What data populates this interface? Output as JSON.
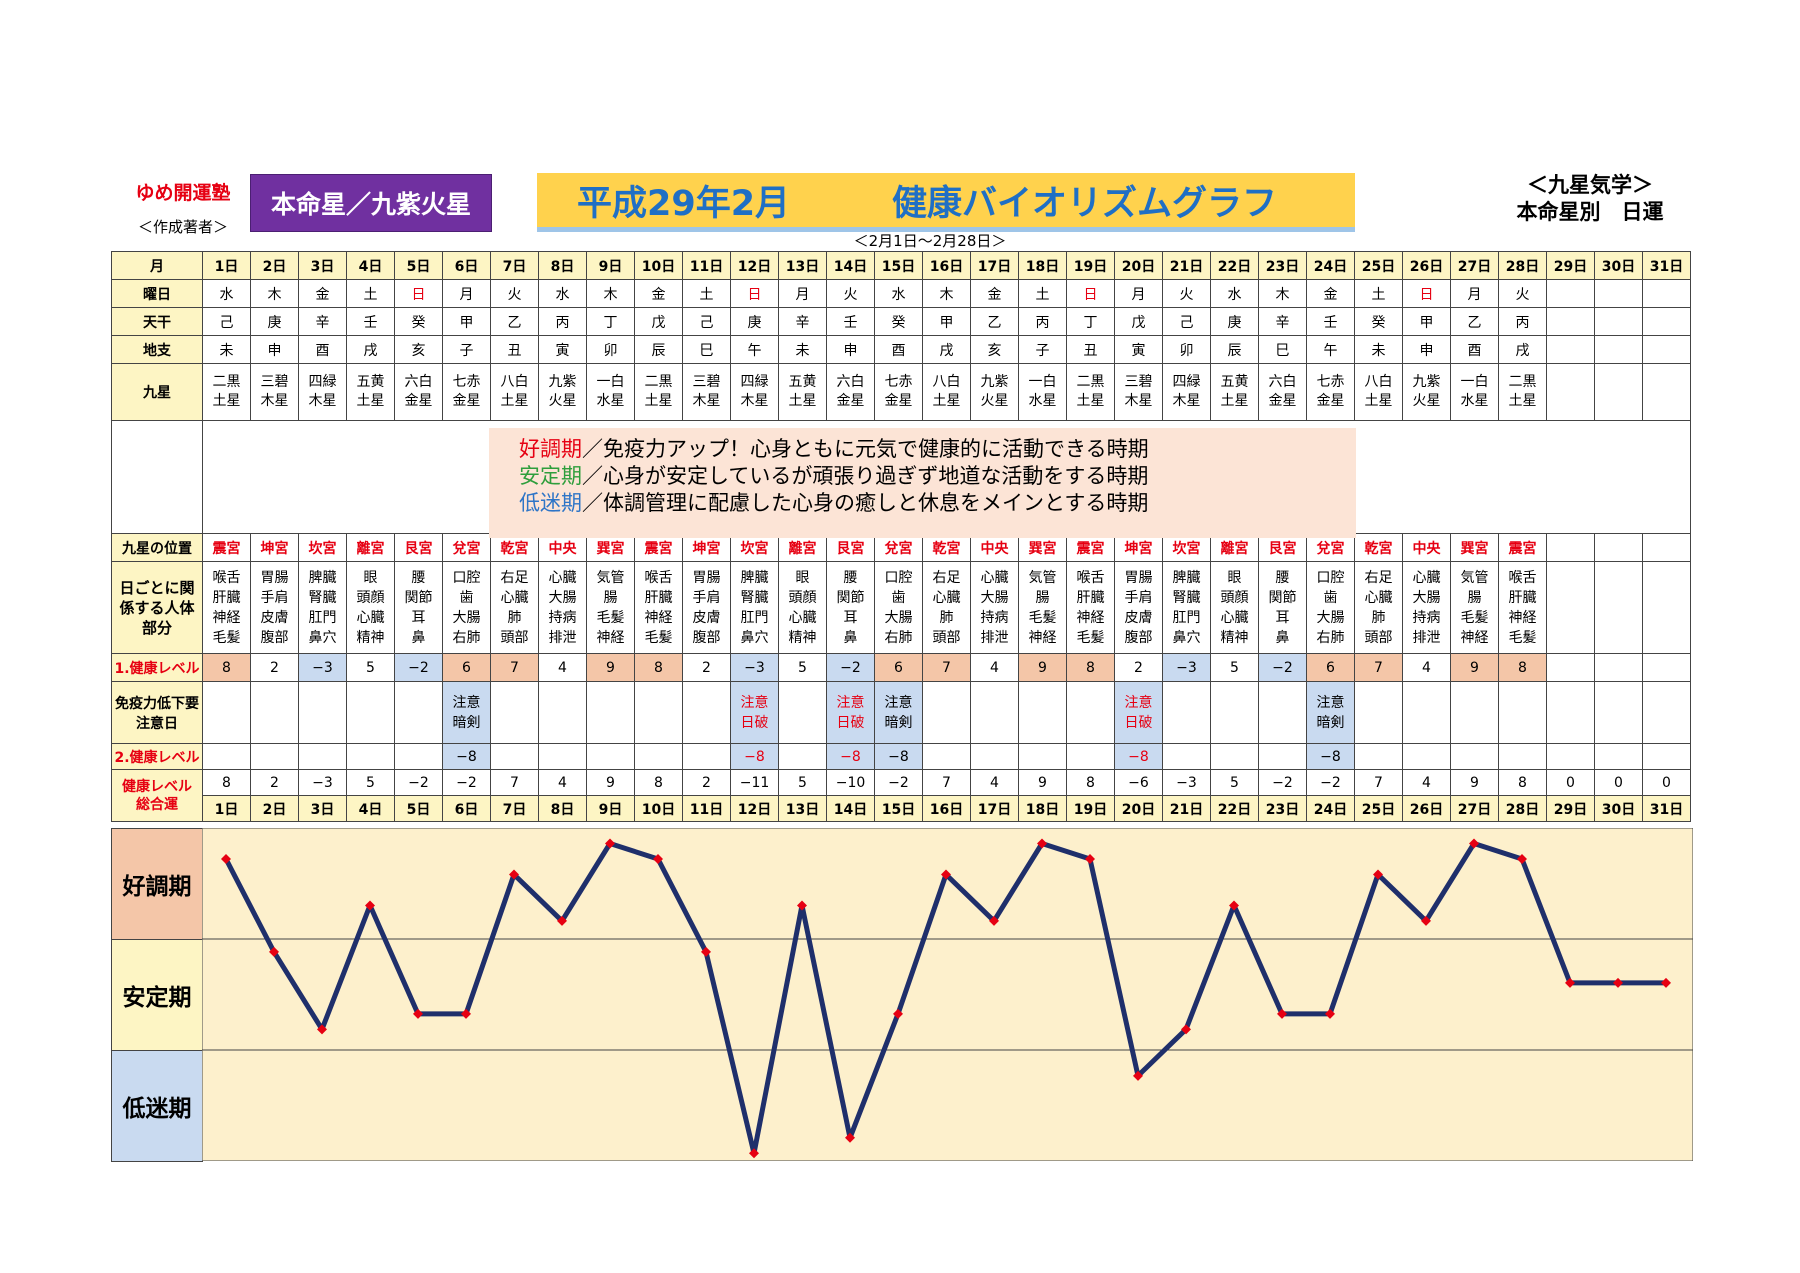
{
  "header": {
    "author": "ゆめ開運塾",
    "author_sub": "＜作成著者＞",
    "honmei": "本命星／九紫火星",
    "title_month": "平成29年2月",
    "title_main": "健康バイオリズムグラフ",
    "range": "＜2月1日～2月28日＞",
    "nine_star_title": "＜九星気学＞",
    "nine_star_sub": "本命星別　日運"
  },
  "row_labels": {
    "month": "月",
    "weekday": "曜日",
    "tenkan": "天干",
    "chishi": "地支",
    "kyusei": "九星",
    "palace": "九星の位置",
    "body": "日ごとに関係する人体部分",
    "level1": "1.健康レベル",
    "immune": "免疫力低下要注意日",
    "level2": "2.健康レベル",
    "total": "健康レベル総合運"
  },
  "days": [
    "1日",
    "2日",
    "3日",
    "4日",
    "5日",
    "6日",
    "7日",
    "8日",
    "9日",
    "10日",
    "11日",
    "12日",
    "13日",
    "14日",
    "15日",
    "16日",
    "17日",
    "18日",
    "19日",
    "20日",
    "21日",
    "22日",
    "23日",
    "24日",
    "25日",
    "26日",
    "27日",
    "28日",
    "29日",
    "30日",
    "31日"
  ],
  "weekdays": [
    "水",
    "木",
    "金",
    "土",
    "日",
    "月",
    "火",
    "水",
    "木",
    "金",
    "土",
    "日",
    "月",
    "火",
    "水",
    "木",
    "金",
    "土",
    "日",
    "月",
    "火",
    "水",
    "木",
    "金",
    "土",
    "日",
    "月",
    "火"
  ],
  "sunday_indices": [
    4,
    11,
    18,
    25
  ],
  "tenkan": [
    "己",
    "庚",
    "辛",
    "壬",
    "癸",
    "甲",
    "乙",
    "丙",
    "丁",
    "戊",
    "己",
    "庚",
    "辛",
    "壬",
    "癸",
    "甲",
    "乙",
    "丙",
    "丁",
    "戊",
    "己",
    "庚",
    "辛",
    "壬",
    "癸",
    "甲",
    "乙",
    "丙"
  ],
  "chishi": [
    "未",
    "申",
    "酉",
    "戌",
    "亥",
    "子",
    "丑",
    "寅",
    "卯",
    "辰",
    "巳",
    "午",
    "未",
    "申",
    "酉",
    "戌",
    "亥",
    "子",
    "丑",
    "寅",
    "卯",
    "辰",
    "巳",
    "午",
    "未",
    "申",
    "酉",
    "戌"
  ],
  "kyusei": [
    [
      "二黒",
      "土星"
    ],
    [
      "三碧",
      "木星"
    ],
    [
      "四緑",
      "木星"
    ],
    [
      "五黄",
      "土星"
    ],
    [
      "六白",
      "金星"
    ],
    [
      "七赤",
      "金星"
    ],
    [
      "八白",
      "土星"
    ],
    [
      "九紫",
      "火星"
    ],
    [
      "一白",
      "水星"
    ],
    [
      "二黒",
      "土星"
    ],
    [
      "三碧",
      "木星"
    ],
    [
      "四緑",
      "木星"
    ],
    [
      "五黄",
      "土星"
    ],
    [
      "六白",
      "金星"
    ],
    [
      "七赤",
      "金星"
    ],
    [
      "八白",
      "土星"
    ],
    [
      "九紫",
      "火星"
    ],
    [
      "一白",
      "水星"
    ],
    [
      "二黒",
      "土星"
    ],
    [
      "三碧",
      "木星"
    ],
    [
      "四緑",
      "木星"
    ],
    [
      "五黄",
      "土星"
    ],
    [
      "六白",
      "金星"
    ],
    [
      "七赤",
      "金星"
    ],
    [
      "八白",
      "土星"
    ],
    [
      "九紫",
      "火星"
    ],
    [
      "一白",
      "水星"
    ],
    [
      "二黒",
      "土星"
    ]
  ],
  "legend": [
    {
      "term": "好調期",
      "desc": "／免疫力アップ！心身ともに元気で健康的に活動できる時期"
    },
    {
      "term": "安定期",
      "desc": "／心身が安定しているが頑張り過ぎず地道な活動をする時期"
    },
    {
      "term": "低迷期",
      "desc": "／体調管理に配慮した心身の癒しと休息をメインとする時期"
    }
  ],
  "palaces": [
    "震宮",
    "坤宮",
    "坎宮",
    "離宮",
    "艮宮",
    "兌宮",
    "乾宮",
    "中央",
    "巽宮",
    "震宮",
    "坤宮",
    "坎宮",
    "離宮",
    "艮宮",
    "兌宮",
    "乾宮",
    "中央",
    "巽宮",
    "震宮",
    "坤宮",
    "坎宮",
    "離宮",
    "艮宮",
    "兌宮",
    "乾宮",
    "中央",
    "巽宮",
    "震宮"
  ],
  "body_parts": [
    [
      "喉舌",
      "肝臓",
      "神経",
      "毛髪"
    ],
    [
      "胃腸",
      "手肩",
      "皮膚",
      "腹部"
    ],
    [
      "脾臓",
      "腎臓",
      "肛門",
      "鼻穴"
    ],
    [
      "眼",
      "頭顔",
      "心臓",
      "精神"
    ],
    [
      "腰",
      "関節",
      "耳",
      "鼻"
    ],
    [
      "口腔",
      "歯",
      "大腸",
      "右肺"
    ],
    [
      "右足",
      "心臓",
      "肺",
      "頭部"
    ],
    [
      "心臓",
      "大腸",
      "持病",
      "排泄"
    ],
    [
      "気管",
      "腸",
      "毛髪",
      "神経"
    ],
    [
      "喉舌",
      "肝臓",
      "神経",
      "毛髪"
    ],
    [
      "胃腸",
      "手肩",
      "皮膚",
      "腹部"
    ],
    [
      "脾臓",
      "腎臓",
      "肛門",
      "鼻穴"
    ],
    [
      "眼",
      "頭顔",
      "心臓",
      "精神"
    ],
    [
      "腰",
      "関節",
      "耳",
      "鼻"
    ],
    [
      "口腔",
      "歯",
      "大腸",
      "右肺"
    ],
    [
      "右足",
      "心臓",
      "肺",
      "頭部"
    ],
    [
      "心臓",
      "大腸",
      "持病",
      "排泄"
    ],
    [
      "気管",
      "腸",
      "毛髪",
      "神経"
    ],
    [
      "喉舌",
      "肝臓",
      "神経",
      "毛髪"
    ],
    [
      "胃腸",
      "手肩",
      "皮膚",
      "腹部"
    ],
    [
      "脾臓",
      "腎臓",
      "肛門",
      "鼻穴"
    ],
    [
      "眼",
      "頭顔",
      "心臓",
      "精神"
    ],
    [
      "腰",
      "関節",
      "耳",
      "鼻"
    ],
    [
      "口腔",
      "歯",
      "大腸",
      "右肺"
    ],
    [
      "右足",
      "心臓",
      "肺",
      "頭部"
    ],
    [
      "心臓",
      "大腸",
      "持病",
      "排泄"
    ],
    [
      "気管",
      "腸",
      "毛髪",
      "神経"
    ],
    [
      "喉舌",
      "肝臓",
      "神経",
      "毛髪"
    ]
  ],
  "level1": [
    "8",
    "2",
    "−3",
    "5",
    "−2",
    "6",
    "7",
    "4",
    "9",
    "8",
    "2",
    "−3",
    "5",
    "−2",
    "6",
    "7",
    "4",
    "9",
    "8",
    "2",
    "−3",
    "5",
    "−2",
    "6",
    "7",
    "4",
    "9",
    "8"
  ],
  "immune_notes": {
    "5": [
      "注意",
      "暗剣"
    ],
    "11": [
      "注意",
      "日破"
    ],
    "13": [
      "注意",
      "日破"
    ],
    "14": [
      "注意",
      "暗剣"
    ],
    "19": [
      "注意",
      "日破"
    ],
    "23": [
      "注意",
      "暗剣"
    ]
  },
  "immune_red": [
    11,
    13,
    19
  ],
  "level2": {
    "5": "−8",
    "11": "−8",
    "13": "−8",
    "14": "−8",
    "19": "−8",
    "23": "−8"
  },
  "total_labels": [
    "8",
    "2",
    "−3",
    "5",
    "−2",
    "−2",
    "7",
    "4",
    "9",
    "8",
    "2",
    "−11",
    "5",
    "−10",
    "−2",
    "7",
    "4",
    "9",
    "8",
    "−6",
    "−3",
    "5",
    "−2",
    "−2",
    "7",
    "4",
    "9",
    "8",
    "0",
    "0",
    "0"
  ],
  "zones": {
    "good": "好調期",
    "stable": "安定期",
    "low": "低迷期"
  },
  "chart_data": {
    "type": "line",
    "x": [
      1,
      2,
      3,
      4,
      5,
      6,
      7,
      8,
      9,
      10,
      11,
      12,
      13,
      14,
      15,
      16,
      17,
      18,
      19,
      20,
      21,
      22,
      23,
      24,
      25,
      26,
      27,
      28,
      29,
      30,
      31
    ],
    "series": [
      {
        "values": [
          8,
          2,
          -3,
          5,
          -2,
          -2,
          7,
          4,
          9,
          8,
          2,
          -11,
          5,
          -10,
          -2,
          7,
          4,
          9,
          8,
          -6,
          -3,
          5,
          -2,
          -2,
          7,
          4,
          9,
          8,
          0,
          0,
          0
        ]
      }
    ],
    "ylim": [
      -11.5,
      10
    ],
    "colors": {
      "line": "#1f2f6b",
      "marker": "#e60012"
    }
  }
}
